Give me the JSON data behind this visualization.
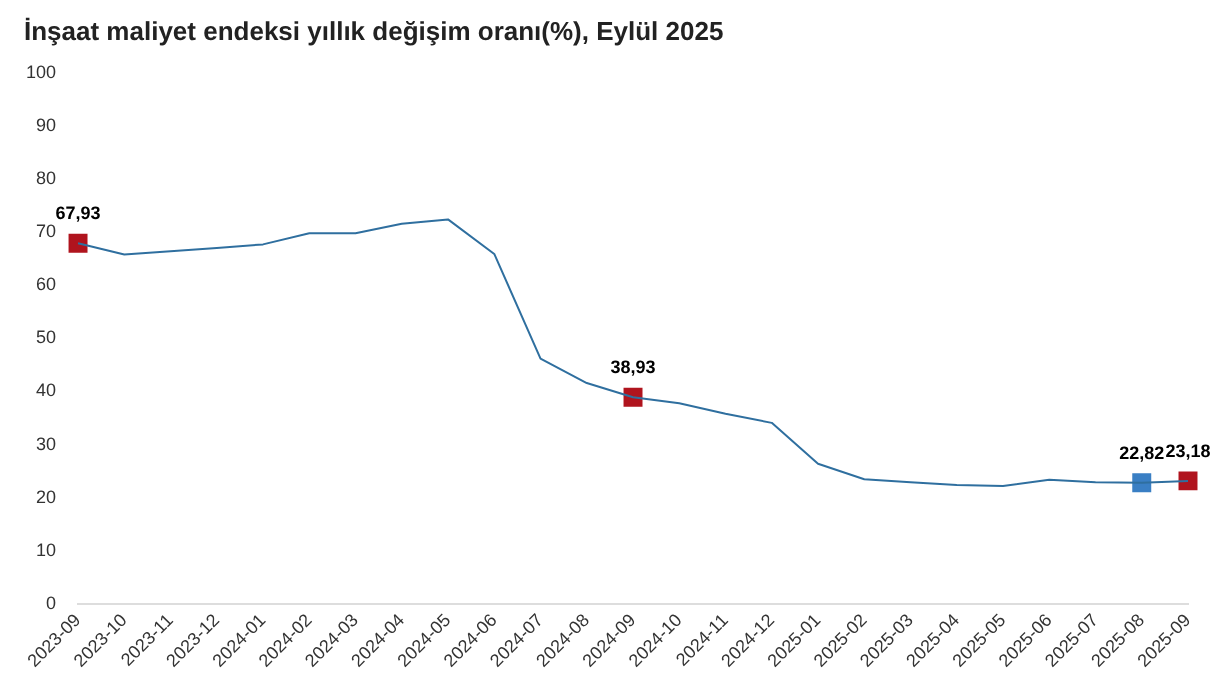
{
  "chart_data": {
    "type": "line",
    "title": "İnşaat maliyet endeksi yıllık değişim oranı(%), Eylül 2025",
    "categories": [
      "2023-09",
      "2023-10",
      "2023-11",
      "2023-12",
      "2024-01",
      "2024-02",
      "2024-03",
      "2024-04",
      "2024-05",
      "2024-06",
      "2024-07",
      "2024-08",
      "2024-09",
      "2024-10",
      "2024-11",
      "2024-12",
      "2025-01",
      "2025-02",
      "2025-03",
      "2025-04",
      "2025-05",
      "2025-06",
      "2025-07",
      "2025-08",
      "2025-09"
    ],
    "series": [
      {
        "color": "#2f6f9f",
        "marker": "none",
        "values": [
          67.93,
          65.8,
          66.4,
          67.0,
          67.7,
          69.8,
          69.8,
          71.6,
          72.4,
          65.9,
          46.2,
          41.6,
          38.93,
          37.8,
          35.8,
          34.1,
          26.4,
          23.5,
          22.9,
          22.4,
          22.2,
          23.4,
          22.9,
          22.82,
          23.18
        ]
      },
      {
        "type": "scatter",
        "marker": "square",
        "values": [
          67.93,
          null,
          null,
          null,
          null,
          null,
          null,
          null,
          null,
          null,
          null,
          null,
          38.93,
          null,
          null,
          null,
          null,
          null,
          null,
          null,
          null,
          null,
          null,
          22.82,
          23.18
        ],
        "colors": [
          "#b0141e",
          null,
          null,
          null,
          null,
          null,
          null,
          null,
          null,
          null,
          null,
          null,
          "#b0141e",
          null,
          null,
          null,
          null,
          null,
          null,
          null,
          null,
          null,
          null,
          "#3a7fc4",
          "#b0141e"
        ],
        "value_labels": [
          "67,93",
          null,
          null,
          null,
          null,
          null,
          null,
          null,
          null,
          null,
          null,
          null,
          "38,93",
          null,
          null,
          null,
          null,
          null,
          null,
          null,
          null,
          null,
          null,
          "22,82",
          "23,18"
        ]
      }
    ],
    "ylim": [
      0,
      100
    ],
    "yticks": [
      0,
      10,
      20,
      30,
      40,
      50,
      60,
      70,
      80,
      90,
      100
    ],
    "grid": false,
    "legend": false
  }
}
